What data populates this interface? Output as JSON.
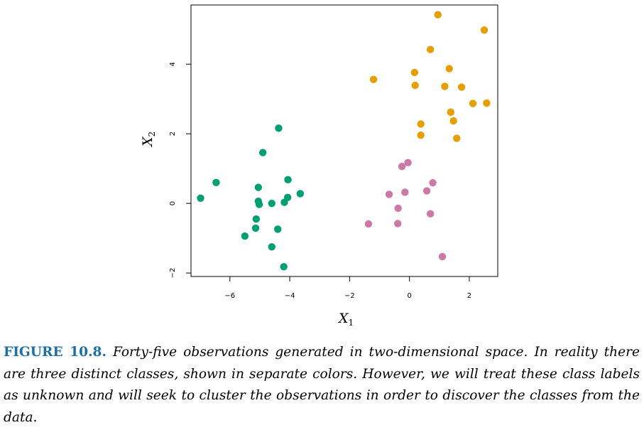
{
  "chart_data": {
    "type": "scatter",
    "title": "",
    "xlabel": "X",
    "xlabel_sub": "1",
    "ylabel": "X",
    "ylabel_sub": "2",
    "xlim": [
      -7.3,
      2.95
    ],
    "ylim": [
      -2.1,
      5.7
    ],
    "x_ticks": [
      -6,
      -4,
      -2,
      0,
      2
    ],
    "x_tick_labels": [
      "−6",
      "−4",
      "−2",
      "0",
      "2"
    ],
    "y_ticks": [
      -2,
      0,
      2,
      4
    ],
    "y_tick_labels": [
      "−2",
      "0",
      "2",
      "4"
    ],
    "grid": false,
    "legend": "none",
    "series": [
      {
        "color": "#e69f00",
        "points": [
          [
            0.95,
            5.42
          ],
          [
            2.5,
            4.98
          ],
          [
            0.7,
            4.42
          ],
          [
            0.17,
            3.76
          ],
          [
            1.33,
            3.87
          ],
          [
            -1.2,
            3.56
          ],
          [
            0.19,
            3.39
          ],
          [
            1.18,
            3.36
          ],
          [
            1.74,
            3.34
          ],
          [
            1.38,
            2.62
          ],
          [
            2.12,
            2.87
          ],
          [
            2.58,
            2.88
          ],
          [
            1.47,
            2.37
          ],
          [
            0.38,
            2.28
          ],
          [
            0.38,
            1.96
          ],
          [
            1.58,
            1.87
          ]
        ]
      },
      {
        "color": "#cc79a7",
        "points": [
          [
            -0.25,
            1.06
          ],
          [
            -0.05,
            1.17
          ],
          [
            0.78,
            0.59
          ],
          [
            -0.68,
            0.26
          ],
          [
            -0.15,
            0.32
          ],
          [
            0.58,
            0.36
          ],
          [
            -0.38,
            -0.14
          ],
          [
            0.7,
            -0.3
          ],
          [
            -1.37,
            -0.59
          ],
          [
            -0.39,
            -0.58
          ],
          [
            1.1,
            -1.53
          ]
        ]
      },
      {
        "color": "#009e73",
        "points": [
          [
            -4.37,
            2.16
          ],
          [
            -4.9,
            1.46
          ],
          [
            -6.46,
            0.6
          ],
          [
            -6.98,
            0.15
          ],
          [
            -4.06,
            0.68
          ],
          [
            -5.05,
            0.46
          ],
          [
            -3.65,
            0.28
          ],
          [
            -4.07,
            0.17
          ],
          [
            -5.05,
            0.06
          ],
          [
            -5.02,
            -0.03
          ],
          [
            -4.6,
            0.0
          ],
          [
            -4.18,
            0.03
          ],
          [
            -5.12,
            -0.45
          ],
          [
            -5.14,
            -0.71
          ],
          [
            -4.4,
            -0.74
          ],
          [
            -5.5,
            -0.94
          ],
          [
            -4.6,
            -1.25
          ],
          [
            -4.2,
            -1.82
          ]
        ]
      }
    ]
  },
  "caption": {
    "label": "FIGURE 10.8.",
    "text": "Forty-five observations generated in two-dimensional space. In reality there are three distinct classes, shown in separate colors. However, we will treat these class labels as unknown and will seek to cluster the observations in order to discover the classes from the data."
  }
}
